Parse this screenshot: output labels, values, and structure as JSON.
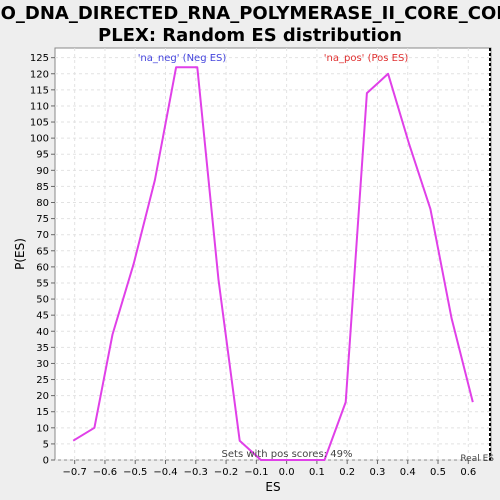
{
  "chart_data": {
    "type": "line",
    "title_line1": "GO_DNA_DIRECTED_RNA_POLYMERASE_II_CORE_COM",
    "title_line2": "PLEX: Random ES distribution",
    "xlabel": "ES",
    "ylabel": "P(ES)",
    "xlim": [
      -0.765,
      0.675
    ],
    "ylim": [
      0,
      128
    ],
    "x_ticks": [
      "−0.7",
      "−0.6",
      "−0.5",
      "−0.4",
      "−0.3",
      "−0.2",
      "−0.1",
      "0.0",
      "0.1",
      "0.2",
      "0.3",
      "0.4",
      "0.5",
      "0.6"
    ],
    "x_tick_values": [
      -0.7,
      -0.6,
      -0.5,
      -0.4,
      -0.3,
      -0.2,
      -0.1,
      0.0,
      0.1,
      0.2,
      0.3,
      0.4,
      0.5,
      0.6
    ],
    "y_ticks": [
      0,
      5,
      10,
      15,
      20,
      25,
      30,
      35,
      40,
      45,
      50,
      55,
      60,
      65,
      70,
      75,
      80,
      85,
      90,
      95,
      100,
      105,
      110,
      115,
      120,
      125
    ],
    "grid": true,
    "series": [
      {
        "color": "#e040e8",
        "points": [
          [
            -0.705,
            6
          ],
          [
            -0.635,
            10
          ],
          [
            -0.575,
            39
          ],
          [
            -0.505,
            61
          ],
          [
            -0.435,
            87
          ],
          [
            -0.365,
            122
          ],
          [
            -0.295,
            122
          ],
          [
            -0.225,
            56
          ],
          [
            -0.155,
            6
          ],
          [
            -0.085,
            0
          ],
          [
            0.125,
            0
          ],
          [
            0.195,
            18
          ],
          [
            0.265,
            114
          ],
          [
            0.335,
            120
          ],
          [
            0.405,
            98
          ],
          [
            0.475,
            78
          ],
          [
            0.545,
            44
          ],
          [
            0.615,
            18
          ]
        ]
      }
    ],
    "annotations": {
      "neg_label": "'na_neg' (Neg ES)",
      "pos_label": "'na_pos' (Pos ES)",
      "footer": "Sets with pos scores: 49%",
      "real_es": "Real ES"
    },
    "colors": {
      "neg_label": "#4444dd",
      "pos_label": "#e03030",
      "line": "#e040e8"
    },
    "real_es_x": 0.675
  }
}
